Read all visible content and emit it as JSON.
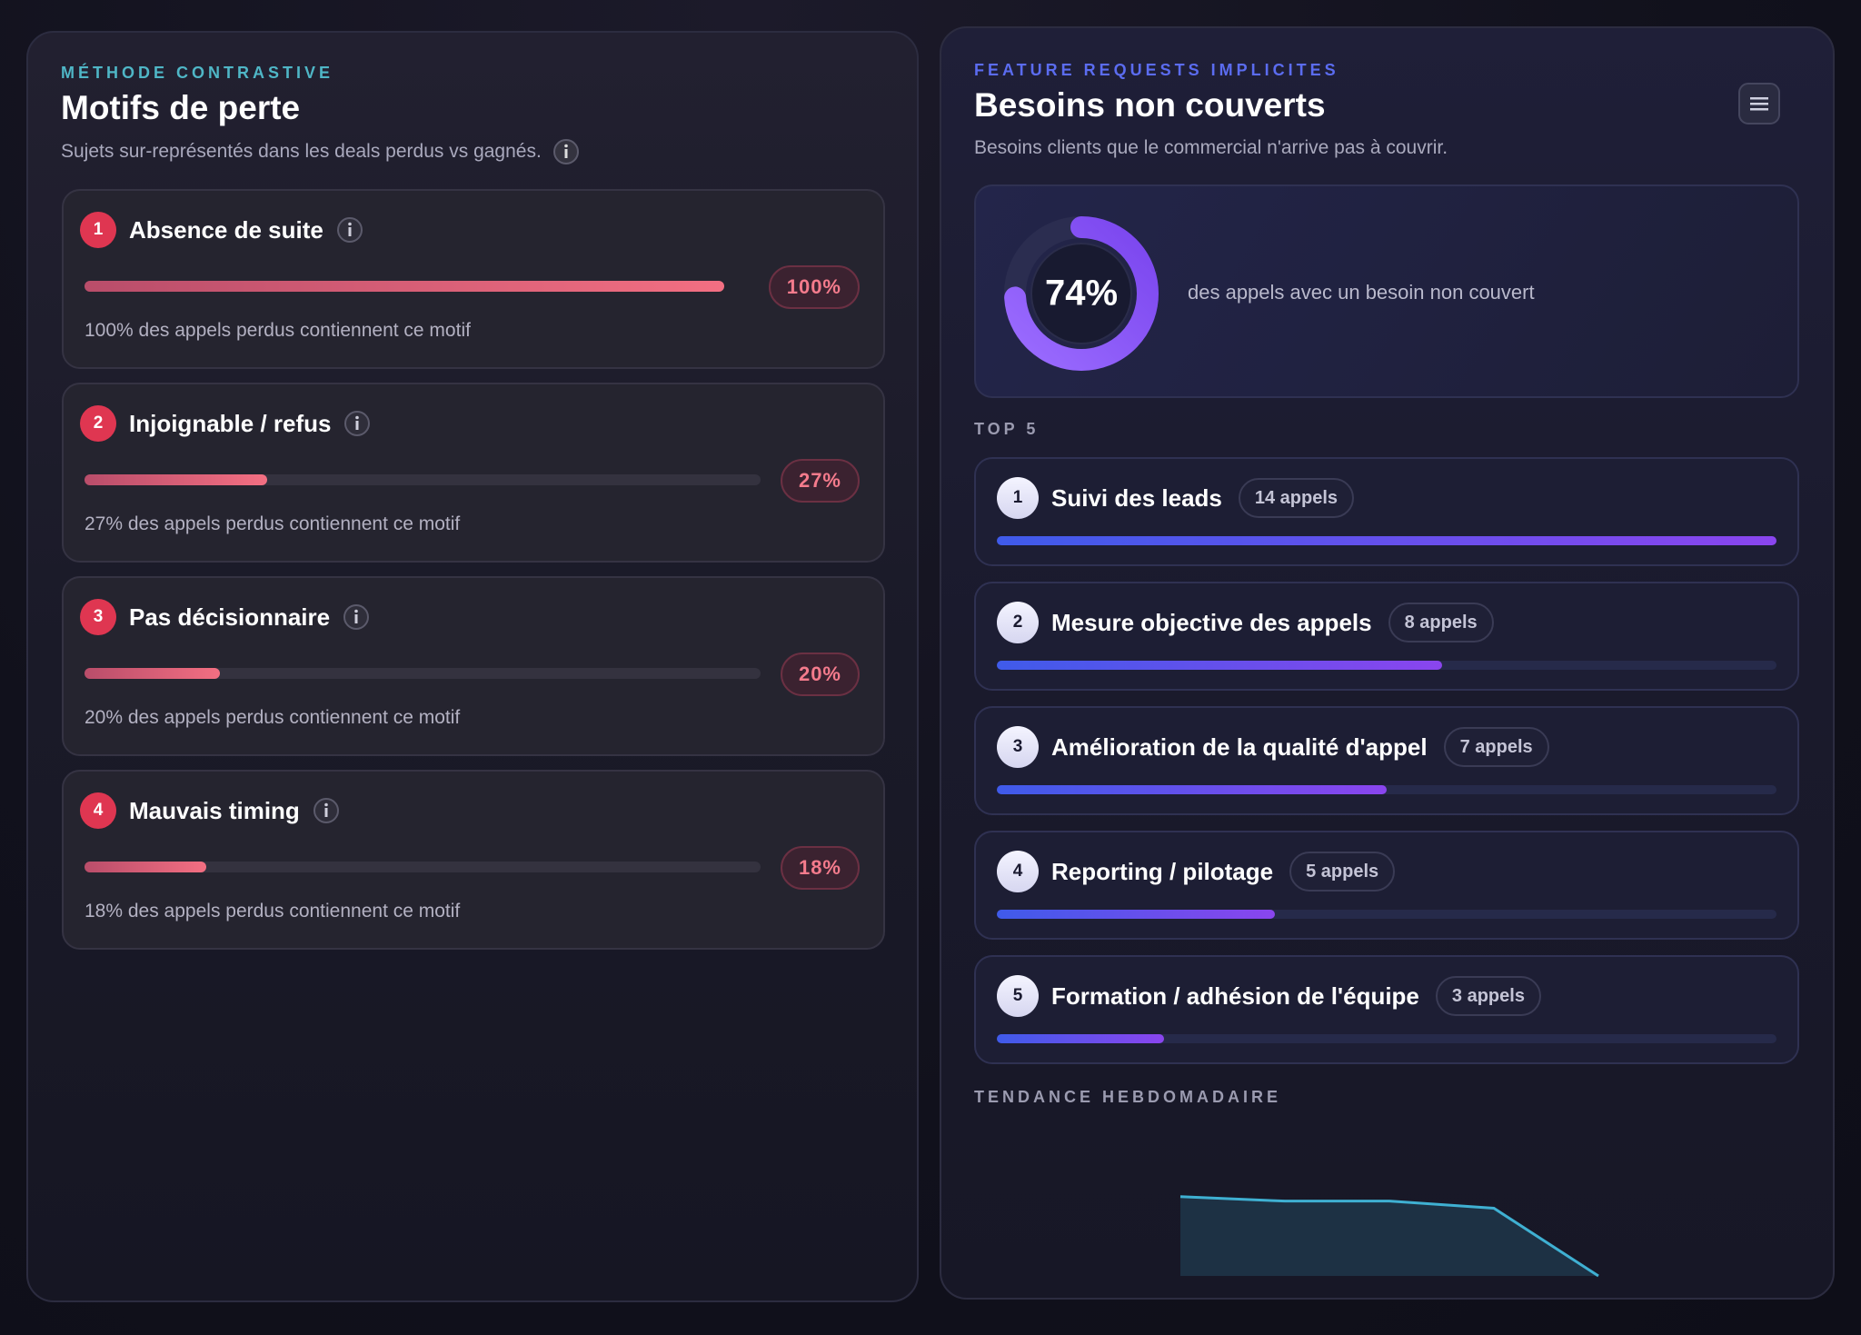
{
  "left": {
    "eyebrow": "MÉTHODE CONTRASTIVE",
    "title": "Motifs de perte",
    "subtitle": "Sujets sur-représentés dans les deals perdus vs gagnés.",
    "ranks": [
      1,
      2,
      3,
      4
    ],
    "categories": [
      "Absence de suite",
      "Injoignable / refus",
      "Pas décisionnaire",
      "Mauvais timing"
    ],
    "values": [
      100,
      27,
      20,
      18
    ],
    "value_labels": [
      "100%",
      "27%",
      "20%",
      "18%"
    ],
    "descriptions": [
      "100% des appels perdus contiennent ce motif",
      "27% des appels perdus contiennent ce motif",
      "20% des appels perdus contiennent ce motif",
      "18% des appels perdus contiennent ce motif"
    ],
    "xlim": [
      0,
      100
    ]
  },
  "right": {
    "eyebrow": "FEATURE REQUESTS IMPLICITES",
    "title": "Besoins non couverts",
    "subtitle": "Besoins clients que le commercial n'arrive pas à couvrir.",
    "gauge": {
      "value": 74,
      "label": "74%",
      "description": "des appels avec un besoin non couvert",
      "max": 100
    },
    "top_label": "TOP 5",
    "ranks": [
      1,
      2,
      3,
      4,
      5
    ],
    "categories": [
      "Suivi des leads",
      "Mesure objective des appels",
      "Amélioration de la qualité d'appel",
      "Reporting / pilotage",
      "Formation / adhésion de l'équipe"
    ],
    "values": [
      14,
      8,
      7,
      5,
      3
    ],
    "value_labels": [
      "14 appels",
      "8 appels",
      "7 appels",
      "5 appels",
      "3 appels"
    ],
    "xlim": [
      0,
      14
    ],
    "trend": {
      "title": "TENDANCE HEBDOMADAIRE",
      "values": [
        89,
        84,
        84,
        76,
        0
      ],
      "ylim": [
        0,
        100
      ]
    }
  }
}
